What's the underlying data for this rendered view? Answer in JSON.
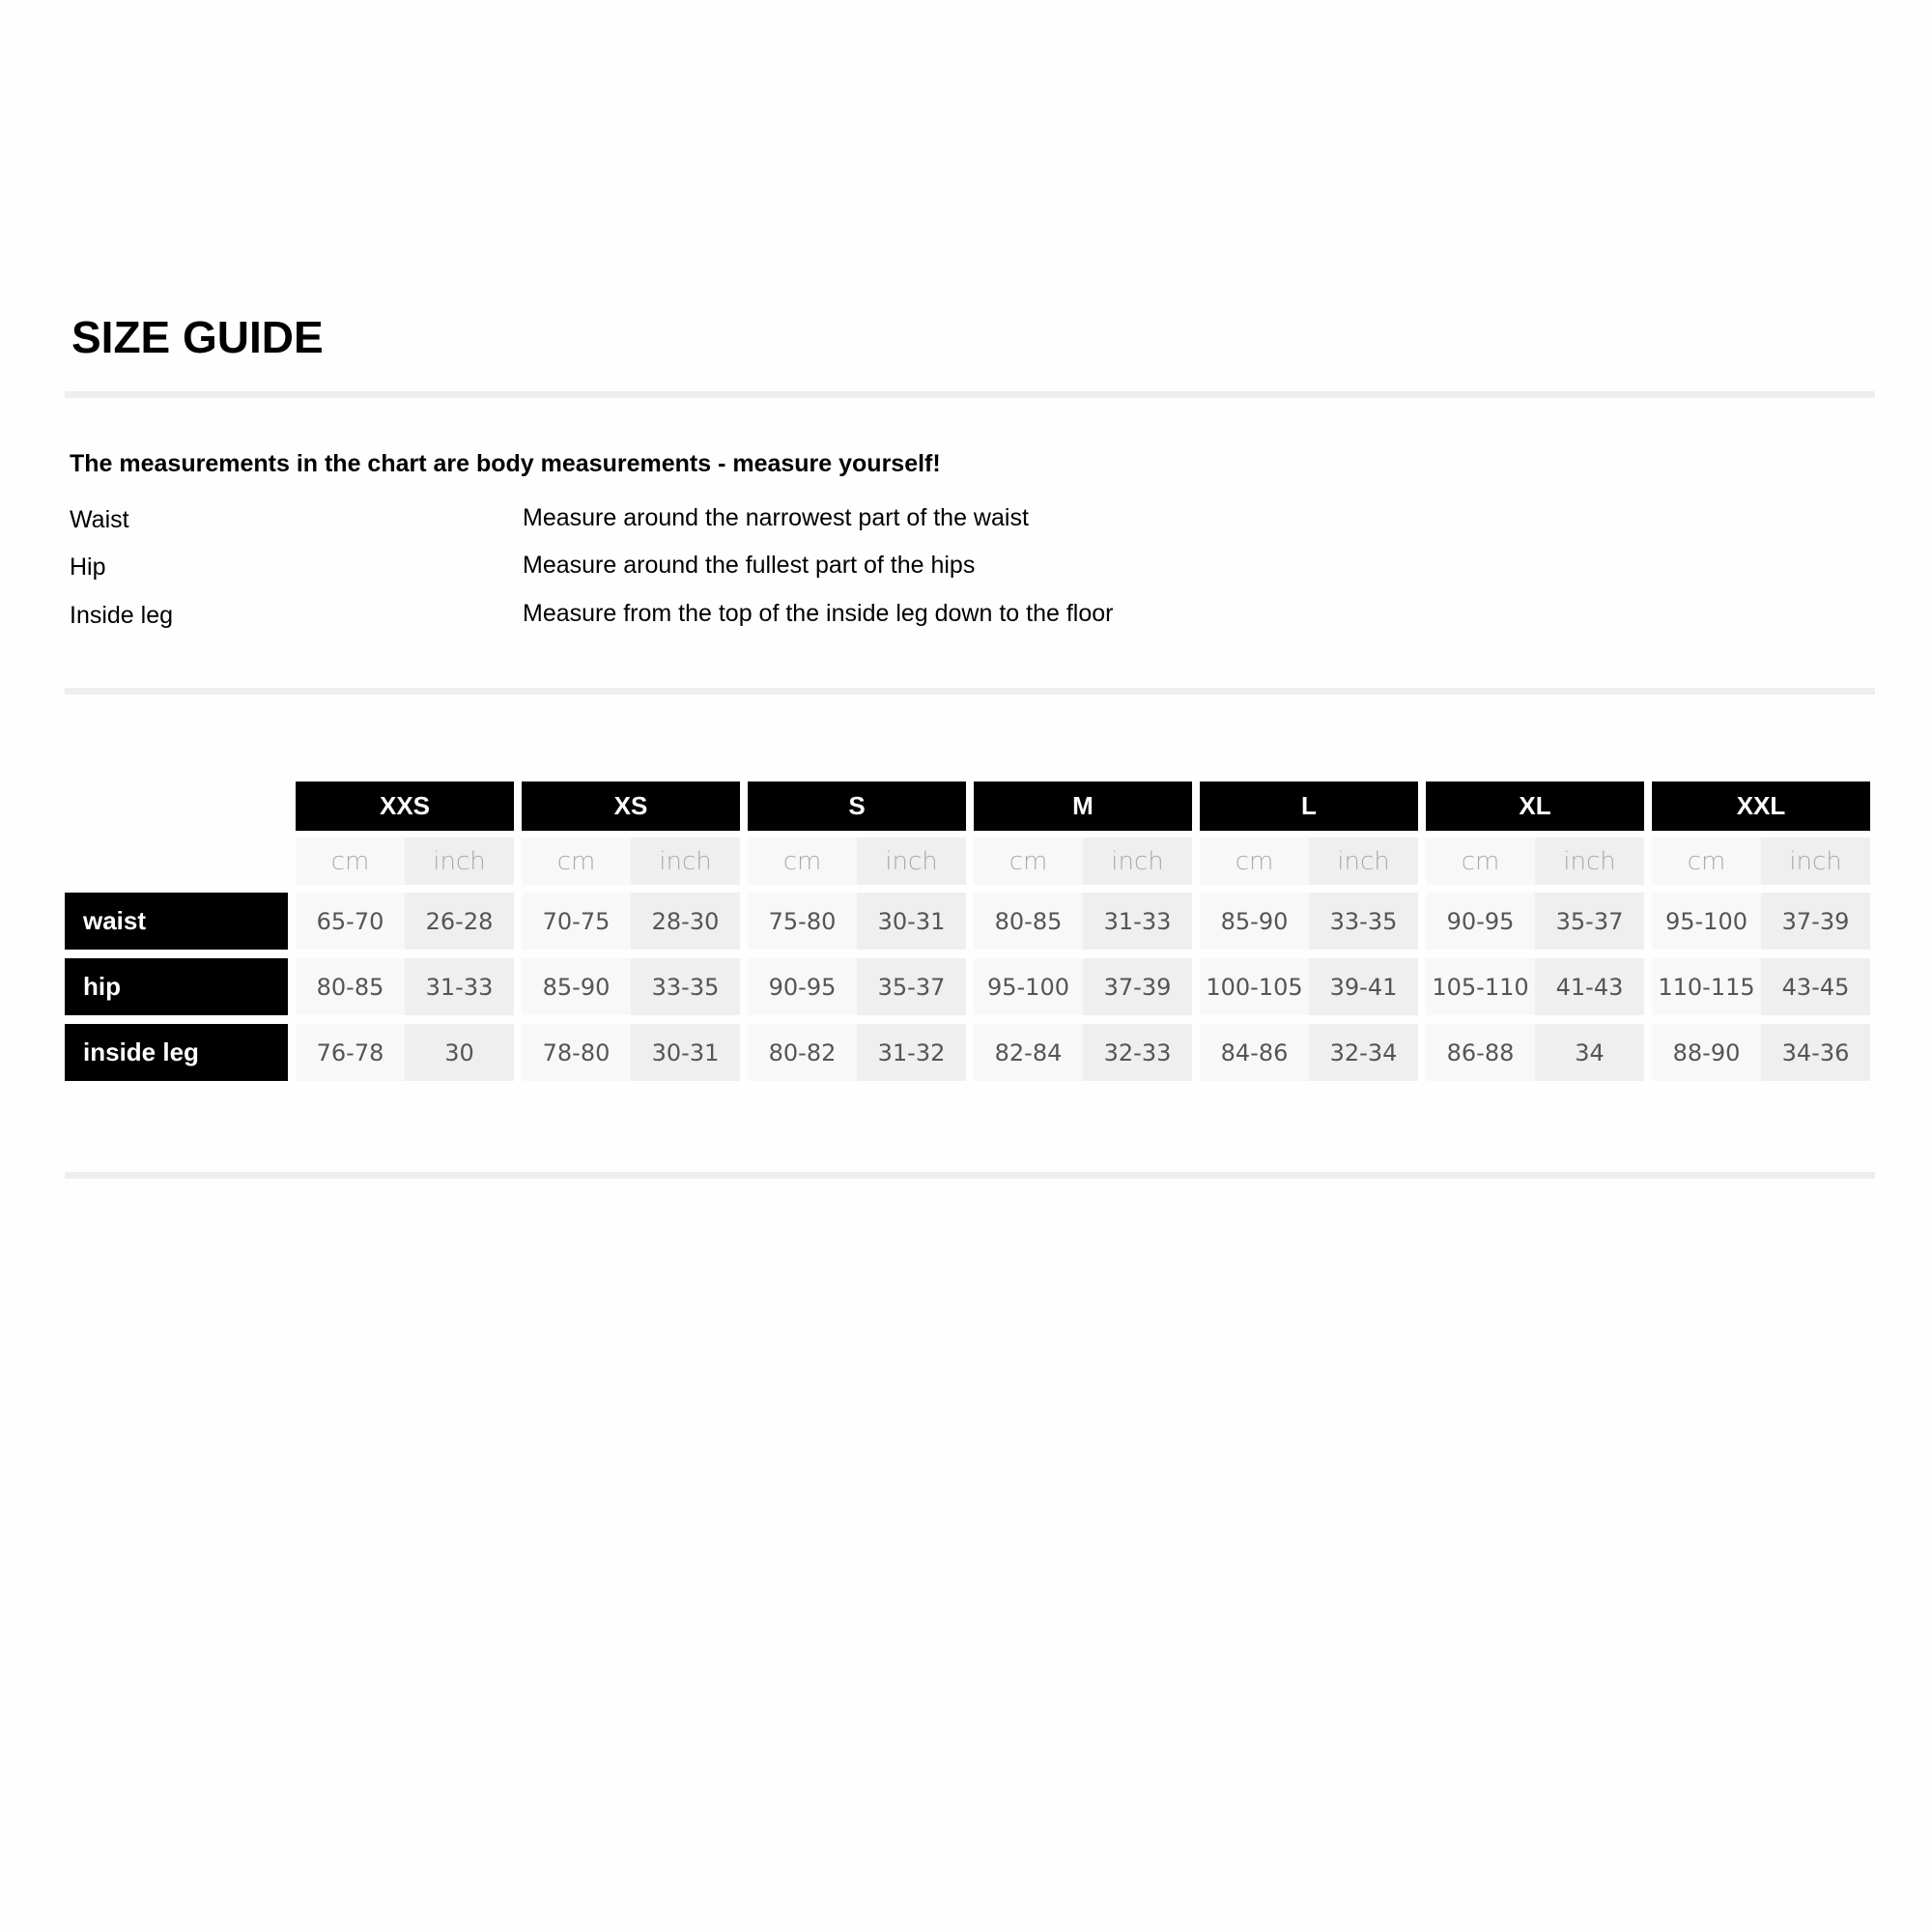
{
  "title": "SIZE GUIDE",
  "intro": "The measurements in the chart are body measurements - measure yourself!",
  "measurements": [
    {
      "name": "Waist",
      "description": "Measure around the narrowest part of the waist"
    },
    {
      "name": "Hip",
      "description": "Measure around the fullest part of the hips"
    },
    {
      "name": "Inside leg",
      "description": "Measure from the top of the inside leg down to the floor"
    }
  ],
  "table": {
    "sizes": [
      "XXS",
      "XS",
      "S",
      "M",
      "L",
      "XL",
      "XXL"
    ],
    "units": [
      "cm",
      "inch"
    ],
    "rows": [
      {
        "label": "waist",
        "values": [
          [
            "65-70",
            "26-28"
          ],
          [
            "70-75",
            "28-30"
          ],
          [
            "75-80",
            "30-31"
          ],
          [
            "80-85",
            "31-33"
          ],
          [
            "85-90",
            "33-35"
          ],
          [
            "90-95",
            "35-37"
          ],
          [
            "95-100",
            "37-39"
          ]
        ]
      },
      {
        "label": "hip",
        "values": [
          [
            "80-85",
            "31-33"
          ],
          [
            "85-90",
            "33-35"
          ],
          [
            "90-95",
            "35-37"
          ],
          [
            "95-100",
            "37-39"
          ],
          [
            "100-105",
            "39-41"
          ],
          [
            "105-110",
            "41-43"
          ],
          [
            "110-115",
            "43-45"
          ]
        ]
      },
      {
        "label": "inside leg",
        "values": [
          [
            "76-78",
            "30"
          ],
          [
            "78-80",
            "30-31"
          ],
          [
            "80-82",
            "31-32"
          ],
          [
            "82-84",
            "32-33"
          ],
          [
            "84-86",
            "32-34"
          ],
          [
            "86-88",
            "34"
          ],
          [
            "88-90",
            "34-36"
          ]
        ]
      }
    ]
  }
}
